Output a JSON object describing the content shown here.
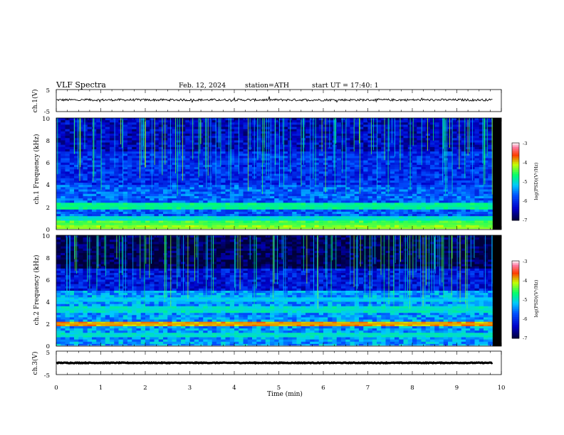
{
  "header": {
    "title": "VLF Spectra",
    "date": "Feb. 12, 2024",
    "station": "station=ATH",
    "start_label": "start UT =",
    "start_time": "17:40: 1"
  },
  "chart_data": [
    {
      "type": "line",
      "name": "ch1-waveform",
      "ylabel": "ch.1(V)",
      "ylim": [
        -5,
        5
      ],
      "y_ticks": [
        "5",
        "-5"
      ],
      "xlim": [
        0,
        10
      ],
      "signal": {
        "mean": 0.3,
        "noise_amplitude": 0.5,
        "t_end": 9.8
      }
    },
    {
      "type": "heatmap",
      "name": "ch1-spectrogram",
      "ylabel": "ch.1 Frequency (kHz)",
      "ylim": [
        0,
        10
      ],
      "y_ticks": [
        "0",
        "2",
        "4",
        "6",
        "8",
        "10"
      ],
      "xlim": [
        0,
        10
      ],
      "t_end": 9.8,
      "bands_khz": [
        {
          "f": 2.1,
          "level": -4.8
        },
        {
          "f": 1.0,
          "level": -5.0
        },
        {
          "f": 0.5,
          "level": -4.5
        },
        {
          "f": 0.1,
          "level": -4.3
        }
      ],
      "colorbar": {
        "label": "log(PSD)(V²/Hz)",
        "ticks": [
          "-3",
          "-4",
          "-5",
          "-6",
          "-7"
        ],
        "range": [
          -7,
          -3
        ]
      }
    },
    {
      "type": "heatmap",
      "name": "ch2-spectrogram",
      "ylabel": "ch.2 Frequency (kHz)",
      "ylim": [
        0,
        10
      ],
      "y_ticks": [
        "0",
        "2",
        "4",
        "6",
        "8",
        "10"
      ],
      "xlim": [
        0,
        10
      ],
      "t_end": 9.8,
      "bands_khz": [
        {
          "f": 2.0,
          "level": -3.9
        },
        {
          "f": 3.3,
          "level": -5.0
        },
        {
          "f": 4.2,
          "level": -5.2
        },
        {
          "f": 1.0,
          "level": -5.0
        }
      ],
      "colorbar": {
        "label": "log(PSD)(V²/Hz)",
        "ticks": [
          "-3",
          "-4",
          "-5",
          "-6",
          "-7"
        ],
        "range": [
          -7,
          -3
        ]
      }
    },
    {
      "type": "line",
      "name": "ch3-waveform",
      "ylabel": "ch.3(V)",
      "ylim": [
        -5,
        5
      ],
      "y_ticks": [
        "5",
        "-5"
      ],
      "xlim": [
        0,
        10
      ],
      "signal": {
        "mean": 0.0,
        "noise_amplitude": 0.15,
        "t_end": 9.8
      }
    }
  ],
  "x_axis": {
    "label": "Time (min)",
    "ticks": [
      "0",
      "1",
      "2",
      "3",
      "4",
      "5",
      "6",
      "7",
      "8",
      "9",
      "10"
    ]
  },
  "colors": {
    "background": "#000000",
    "colormap": [
      "#00003a",
      "#0000ff",
      "#00c8ff",
      "#00ff50",
      "#ffff00",
      "#ff0000",
      "#ffffff"
    ]
  }
}
